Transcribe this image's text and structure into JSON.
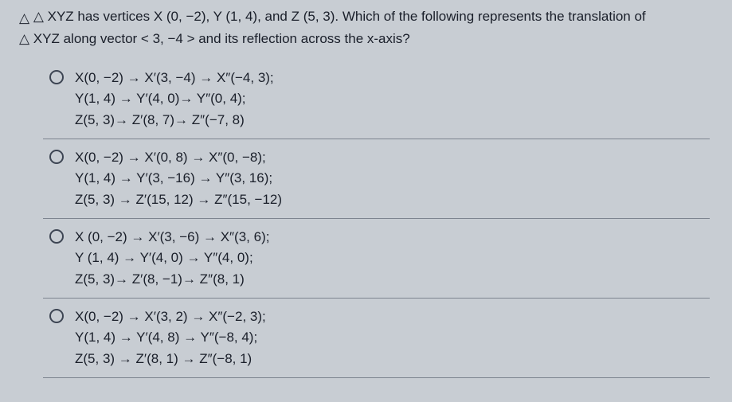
{
  "question": {
    "line1_pre": "△ XYZ has vertices ",
    "line1_post": ". Which of the following represents the translation of",
    "vertices": "X (0, −2), Y (1, 4), and Z (5, 3)",
    "line2": "△ XYZ along vector < 3, −4 > and its reflection across the x-axis?"
  },
  "options": [
    {
      "l1": "X(0, −2) → X′(3, −4) → X″(−4, 3);",
      "l2": "Y(1, 4) → Y′(4, 0)→ Y″(0, 4);",
      "l3": "Z(5, 3)→ Z′(8, 7)→ Z″(−7, 8)"
    },
    {
      "l1": "X(0, −2) → X′(0, 8) → X″(0, −8);",
      "l2": "Y(1, 4) → Y′(3, −16) → Y″(3, 16);",
      "l3": "Z(5, 3) → Z′(15, 12) → Z″(15, −12)"
    },
    {
      "l1": "X (0, −2) → X′(3, −6) → X″(3, 6);",
      "l2": "Y (1, 4) → Y′(4, 0) → Y″(4, 0);",
      "l3": "Z(5, 3)→ Z′(8, −1)→ Z″(8, 1)"
    },
    {
      "l1": "X(0, −2) → X′(3, 2) → X″(−2, 3);",
      "l2": "Y(1, 4) → Y′(4, 8) → Y″(−8, 4);",
      "l3": "Z(5, 3) → Z′(8, 1) → Z″(−8, 1)"
    }
  ]
}
